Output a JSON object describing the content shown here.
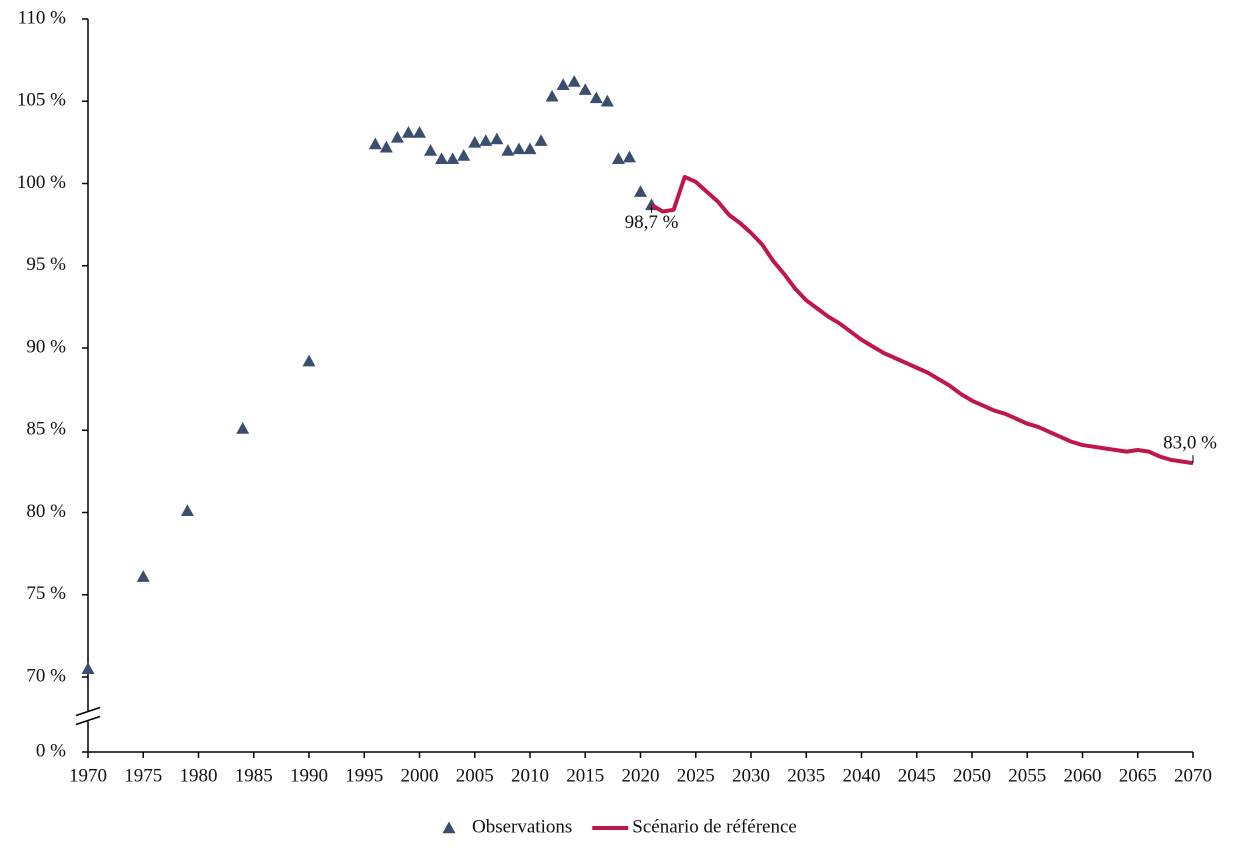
{
  "chart_data": {
    "type": "line",
    "xlim": [
      1970,
      2070
    ],
    "xticks": [
      1970,
      1975,
      1980,
      1985,
      1990,
      1995,
      2000,
      2005,
      2010,
      2015,
      2020,
      2025,
      2030,
      2035,
      2040,
      2045,
      2050,
      2055,
      2060,
      2065,
      2070
    ],
    "ylim": [
      70,
      110
    ],
    "axis_break": [
      0,
      70
    ],
    "yticks": [
      {
        "value": 0,
        "label": "0 %"
      },
      {
        "value": 70,
        "label": "70 %"
      },
      {
        "value": 75,
        "label": "75 %"
      },
      {
        "value": 80,
        "label": "80 %"
      },
      {
        "value": 85,
        "label": "85 %"
      },
      {
        "value": 90,
        "label": "90 %"
      },
      {
        "value": 95,
        "label": "95 %"
      },
      {
        "value": 100,
        "label": "100 %"
      },
      {
        "value": 105,
        "label": "105 %"
      },
      {
        "value": 110,
        "label": "110 %"
      }
    ],
    "legend": "bottom",
    "series": [
      {
        "name": "Observations",
        "type": "scatter",
        "color": "#3b4e6d",
        "x": [
          1970,
          1975,
          1979,
          1984,
          1990,
          1996,
          1997,
          1998,
          1999,
          2000,
          2001,
          2002,
          2003,
          2004,
          2005,
          2006,
          2007,
          2008,
          2009,
          2010,
          2011,
          2012,
          2013,
          2014,
          2015,
          2016,
          2017,
          2018,
          2019,
          2020,
          2021
        ],
        "values": [
          70.5,
          76.1,
          80.1,
          85.1,
          89.2,
          102.4,
          102.2,
          102.8,
          103.1,
          103.1,
          102.0,
          101.5,
          101.5,
          101.7,
          102.5,
          102.6,
          102.7,
          102.0,
          102.1,
          102.1,
          102.6,
          105.3,
          106.0,
          106.2,
          105.7,
          105.2,
          105.0,
          101.5,
          101.6,
          99.5,
          98.7
        ]
      },
      {
        "name": "Scénario de référence",
        "type": "line",
        "color": "#c0174a",
        "x": [
          2021,
          2022,
          2023,
          2024,
          2025,
          2026,
          2027,
          2028,
          2029,
          2030,
          2031,
          2032,
          2033,
          2034,
          2035,
          2036,
          2037,
          2038,
          2039,
          2040,
          2041,
          2042,
          2043,
          2044,
          2045,
          2046,
          2047,
          2048,
          2049,
          2050,
          2051,
          2052,
          2053,
          2054,
          2055,
          2056,
          2057,
          2058,
          2059,
          2060,
          2061,
          2062,
          2063,
          2064,
          2065,
          2066,
          2067,
          2068,
          2069,
          2070
        ],
        "values": [
          98.7,
          98.3,
          98.4,
          100.4,
          100.1,
          99.5,
          98.9,
          98.1,
          97.6,
          97.0,
          96.3,
          95.3,
          94.5,
          93.6,
          92.9,
          92.4,
          91.9,
          91.5,
          91.0,
          90.5,
          90.1,
          89.7,
          89.4,
          89.1,
          88.8,
          88.5,
          88.1,
          87.7,
          87.2,
          86.8,
          86.5,
          86.2,
          86.0,
          85.7,
          85.4,
          85.2,
          84.9,
          84.6,
          84.3,
          84.1,
          84.0,
          83.9,
          83.8,
          83.7,
          83.8,
          83.7,
          83.4,
          83.2,
          83.1,
          83.0
        ]
      }
    ],
    "annotations": [
      {
        "x": 2021,
        "y": 98.7,
        "label": "98,7 %"
      },
      {
        "x": 2070,
        "y": 83.0,
        "label": "83,0 %"
      }
    ]
  }
}
